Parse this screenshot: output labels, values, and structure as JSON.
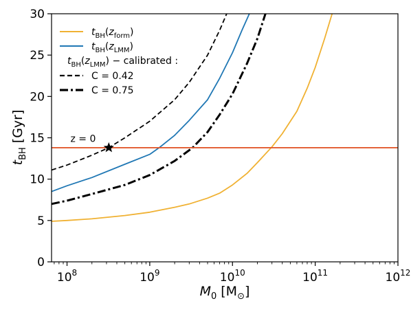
{
  "chart_data": {
    "type": "line",
    "title": "",
    "xlabel": {
      "symbol": "M",
      "sub": "0",
      "unit": "[M",
      "unit_sub": "⊙",
      "unit_close": "]"
    },
    "ylabel": {
      "symbol": "t",
      "sub": "BH",
      "unit": "[Gyr]"
    },
    "x_scale": "log",
    "xlim": [
      65000000.0,
      1000000000000.0
    ],
    "ylim": [
      0,
      30
    ],
    "x_ticks": [
      {
        "value": 100000000.0,
        "base": "10",
        "exp": "8"
      },
      {
        "value": 1000000000.0,
        "base": "10",
        "exp": "9"
      },
      {
        "value": 10000000000.0,
        "base": "10",
        "exp": "10"
      },
      {
        "value": 100000000000.0,
        "base": "10",
        "exp": "11"
      },
      {
        "value": 1000000000000.0,
        "base": "10",
        "exp": "12"
      }
    ],
    "y_ticks": [
      {
        "value": 0,
        "label": "0"
      },
      {
        "value": 5,
        "label": "5"
      },
      {
        "value": 10,
        "label": "10"
      },
      {
        "value": 15,
        "label": "15"
      },
      {
        "value": 20,
        "label": "20"
      },
      {
        "value": 25,
        "label": "25"
      },
      {
        "value": 30,
        "label": "30"
      }
    ],
    "grid": false,
    "legend_position": "top-left",
    "legend": {
      "entries": [
        {
          "series": "t_form",
          "label_main": "t",
          "label_sub": "BH",
          "label_arg": "z",
          "label_arg_sub": "form"
        },
        {
          "series": "t_lmm",
          "label_main": "t",
          "label_sub": "BH",
          "label_arg": "z",
          "label_arg_sub": "LMM"
        }
      ],
      "subtitle": {
        "main": "t",
        "sub": "BH",
        "arg": "z",
        "arg_sub": "LMM",
        "rest": ") − calibrated :"
      },
      "entries_calibrated": [
        {
          "series": "c042",
          "label": "C = 0.42"
        },
        {
          "series": "c075",
          "label": "C = 0.75"
        }
      ]
    },
    "annotation": {
      "text": "z = 0",
      "x": 110000000.0,
      "y": 14.5
    },
    "reference_line": {
      "y": 13.8,
      "color": "#e2592d"
    },
    "marker": {
      "x": 320000000.0,
      "y": 13.8,
      "symbol": "star"
    },
    "series": [
      {
        "id": "t_form",
        "color": "#f0b132",
        "dash": "solid",
        "width": 1.8,
        "points": [
          [
            65000000.0,
            4.9
          ],
          [
            100000000.0,
            5.0
          ],
          [
            200000000.0,
            5.2
          ],
          [
            500000000.0,
            5.6
          ],
          [
            1000000000.0,
            6.0
          ],
          [
            2000000000.0,
            6.6
          ],
          [
            3000000000.0,
            7.0
          ],
          [
            5000000000.0,
            7.7
          ],
          [
            7000000000.0,
            8.3
          ],
          [
            10000000000.0,
            9.3
          ],
          [
            15000000000.0,
            10.7
          ],
          [
            20000000000.0,
            12.0
          ],
          [
            30000000000.0,
            13.9
          ],
          [
            40000000000.0,
            15.5
          ],
          [
            60000000000.0,
            18.2
          ],
          [
            80000000000.0,
            21.0
          ],
          [
            100000000000.0,
            23.5
          ],
          [
            130000000000.0,
            27.0
          ],
          [
            160000000000.0,
            30.0
          ]
        ]
      },
      {
        "id": "t_lmm",
        "color": "#1f77b4",
        "dash": "solid",
        "width": 1.8,
        "points": [
          [
            65000000.0,
            8.5
          ],
          [
            100000000.0,
            9.2
          ],
          [
            200000000.0,
            10.2
          ],
          [
            500000000.0,
            11.8
          ],
          [
            1000000000.0,
            13.0
          ],
          [
            1300000000.0,
            13.8
          ],
          [
            2000000000.0,
            15.3
          ],
          [
            3000000000.0,
            17.1
          ],
          [
            5000000000.0,
            19.6
          ],
          [
            7000000000.0,
            22.2
          ],
          [
            10000000000.0,
            25.3
          ],
          [
            13000000000.0,
            28.0
          ],
          [
            16000000000.0,
            30.0
          ]
        ]
      },
      {
        "id": "c042",
        "color": "#000000",
        "dash": "dashed",
        "width": 1.8,
        "points": [
          [
            65000000.0,
            11.1
          ],
          [
            100000000.0,
            11.7
          ],
          [
            200000000.0,
            12.9
          ],
          [
            320000000.0,
            13.8
          ],
          [
            500000000.0,
            15.0
          ],
          [
            1000000000.0,
            17.0
          ],
          [
            2000000000.0,
            19.6
          ],
          [
            3000000000.0,
            21.7
          ],
          [
            5000000000.0,
            25.0
          ],
          [
            7000000000.0,
            28.0
          ],
          [
            8500000000.0,
            30.0
          ]
        ]
      },
      {
        "id": "c075",
        "color": "#000000",
        "dash": "dashdot",
        "width": 3,
        "points": [
          [
            65000000.0,
            7.0
          ],
          [
            100000000.0,
            7.4
          ],
          [
            200000000.0,
            8.2
          ],
          [
            500000000.0,
            9.3
          ],
          [
            1000000000.0,
            10.5
          ],
          [
            2000000000.0,
            12.2
          ],
          [
            3300000000.0,
            13.8
          ],
          [
            5000000000.0,
            15.7
          ],
          [
            7000000000.0,
            17.8
          ],
          [
            10000000000.0,
            20.3
          ],
          [
            15000000000.0,
            24.0
          ],
          [
            20000000000.0,
            27.0
          ],
          [
            25000000000.0,
            30.0
          ]
        ]
      }
    ]
  }
}
